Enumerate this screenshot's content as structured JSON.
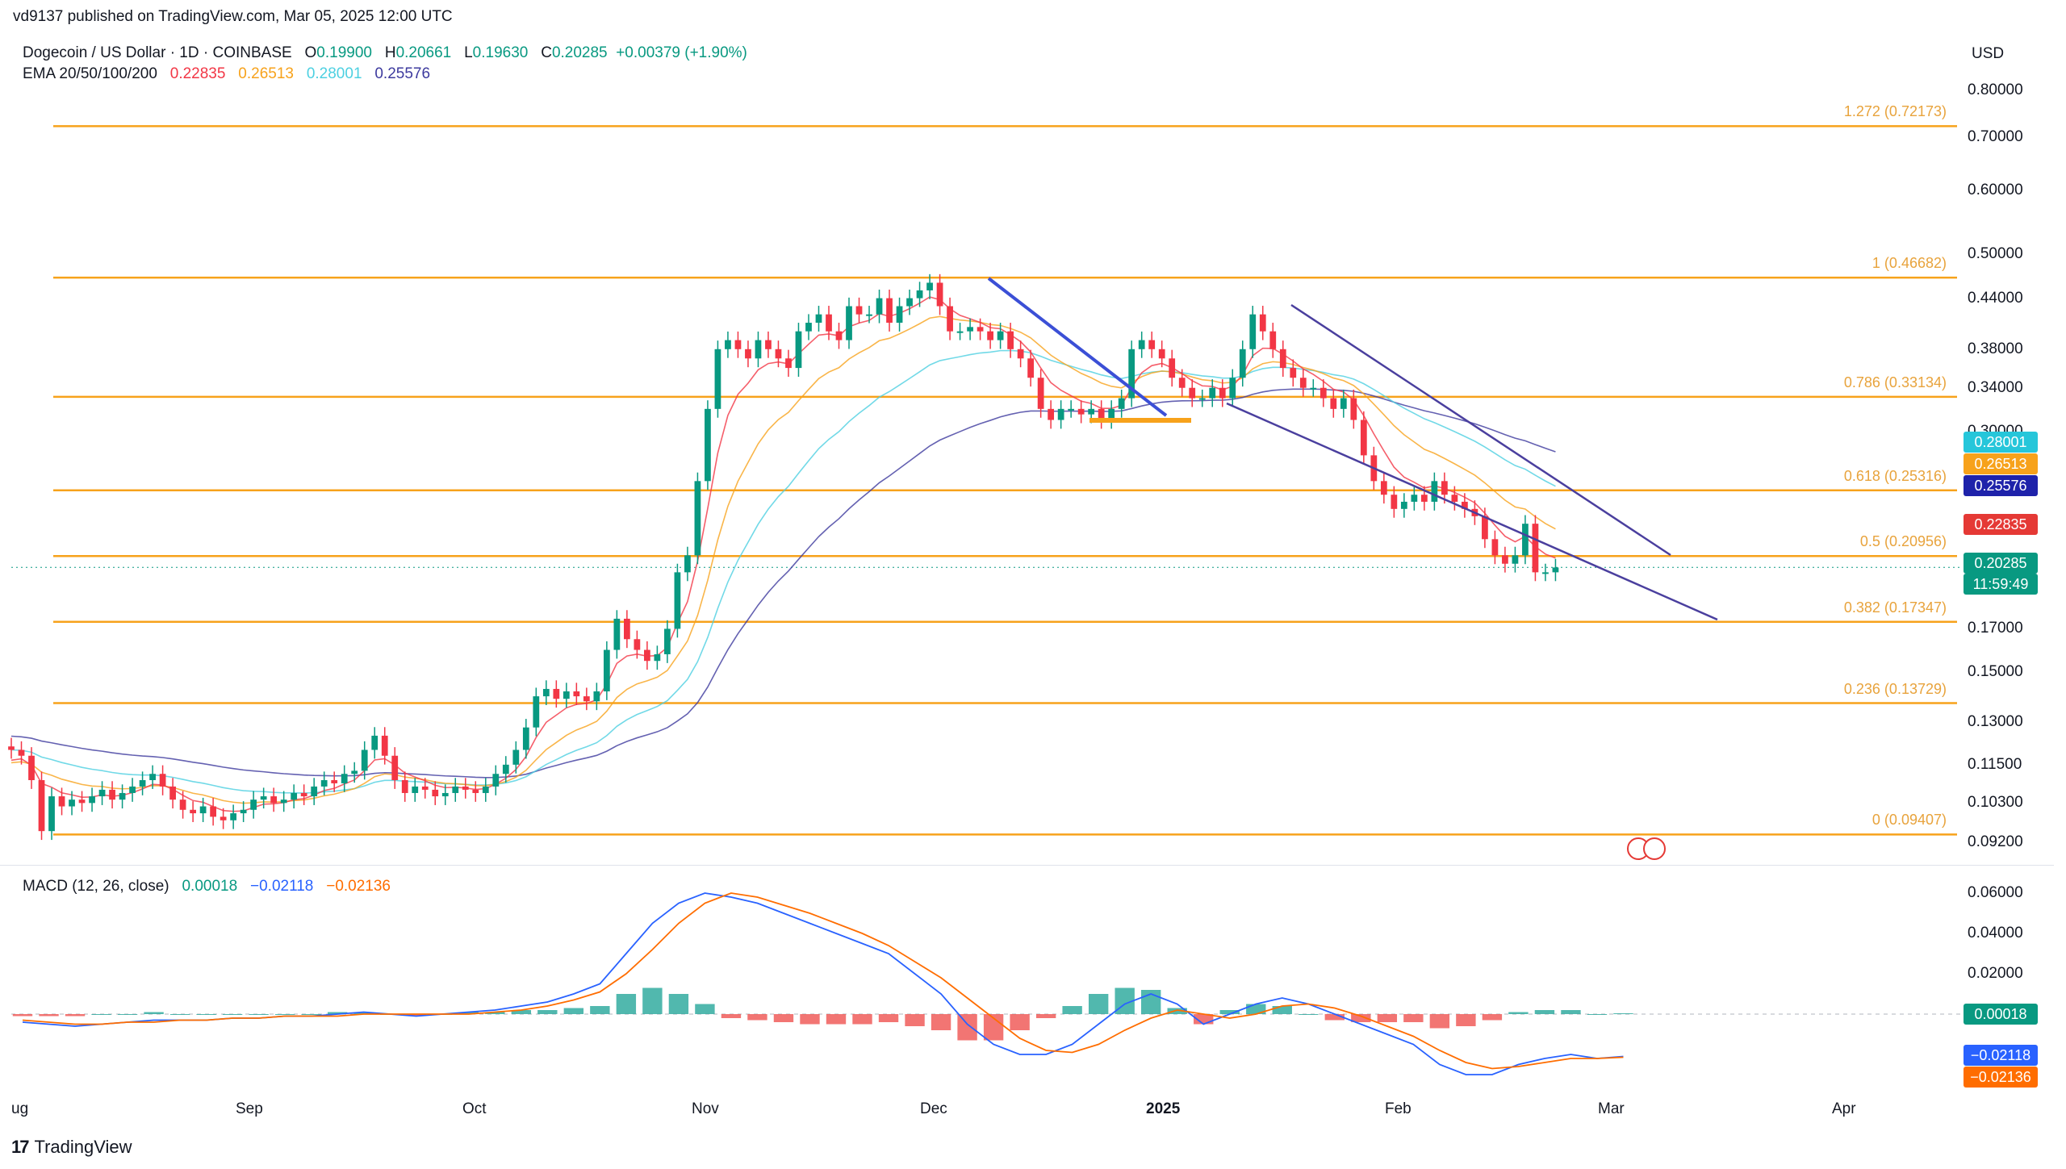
{
  "header": {
    "publisher": "vd9137 published on TradingView.com, Mar 05, 2025 12:00 UTC",
    "symbol": "Dogecoin / US Dollar · 1D · COINBASE",
    "o_label": "O",
    "o_value": "0.19900",
    "h_label": "H",
    "h_value": "0.20661",
    "l_label": "L",
    "l_value": "0.19630",
    "c_label": "C",
    "c_value": "0.20285",
    "change": "+0.00379 (+1.90%)",
    "ema_label": "EMA 20/50/100/200",
    "ema20": "0.22835",
    "ema50": "0.26513",
    "ema100": "0.28001",
    "ema200": "0.25576",
    "currency": "USD"
  },
  "macd_header": {
    "label": "MACD (12, 26, close)",
    "hist": "0.00018",
    "macd": "−0.02118",
    "signal": "−0.02136"
  },
  "colors": {
    "up": "#089981",
    "down": "#f23645",
    "fib": "#f7a21b",
    "ema20": "#f23645",
    "ema50": "#f7a21b",
    "ema100": "#4dd0e1",
    "ema200": "#3d3a9e",
    "macd": "#2962ff",
    "signal": "#ff6d00"
  },
  "brand": {
    "name": "TradingView",
    "logo_icon": "tradingview-logo-icon"
  },
  "chart_data": [
    {
      "type": "candlestick",
      "title": "Dogecoin / US Dollar · 1D · COINBASE",
      "scale": "log",
      "yticks": [
        "0.80000",
        "0.70000",
        "0.60000",
        "0.50000",
        "0.44000",
        "0.38000",
        "0.34000",
        "0.30000",
        "0.17000",
        "0.15000",
        "0.13000",
        "0.11500",
        "0.10300",
        "0.09200"
      ],
      "xticks": [
        "ug",
        "Sep",
        "Oct",
        "Nov",
        "Dec",
        "2025",
        "Feb",
        "Mar",
        "Apr"
      ],
      "fib_levels": [
        {
          "label": "1.272 (0.72173)",
          "value": 0.72173
        },
        {
          "label": "1 (0.46682)",
          "value": 0.46682
        },
        {
          "label": "0.786 (0.33134)",
          "value": 0.33134
        },
        {
          "label": "0.618 (0.25316)",
          "value": 0.25316
        },
        {
          "label": "0.5 (0.20956)",
          "value": 0.20956
        },
        {
          "label": "0.382 (0.17347)",
          "value": 0.17347
        },
        {
          "label": "0.236 (0.13729)",
          "value": 0.13729
        },
        {
          "label": "0 (0.09407)",
          "value": 0.09407
        }
      ],
      "price_tags": [
        {
          "label": "0.28001",
          "value": 0.28001,
          "color": "#26c6da"
        },
        {
          "label": "0.26513",
          "value": 0.26513,
          "color": "#f7a21b"
        },
        {
          "label": "0.25576",
          "value": 0.25576,
          "color": "#1e22aa"
        },
        {
          "label": "0.22835",
          "value": 0.22835,
          "color": "#e53935"
        },
        {
          "label": "0.20285",
          "value": 0.20285,
          "color": "#089981"
        }
      ],
      "countdown": "11:59:49",
      "closes_approx": [
        0.12,
        0.118,
        0.11,
        0.095,
        0.105,
        0.102,
        0.104,
        0.103,
        0.105,
        0.107,
        0.104,
        0.106,
        0.108,
        0.11,
        0.112,
        0.108,
        0.104,
        0.101,
        0.1,
        0.102,
        0.099,
        0.098,
        0.1,
        0.101,
        0.104,
        0.105,
        0.103,
        0.104,
        0.106,
        0.105,
        0.108,
        0.11,
        0.109,
        0.112,
        0.113,
        0.12,
        0.125,
        0.118,
        0.11,
        0.106,
        0.108,
        0.107,
        0.105,
        0.106,
        0.108,
        0.107,
        0.106,
        0.108,
        0.112,
        0.115,
        0.12,
        0.128,
        0.14,
        0.143,
        0.139,
        0.142,
        0.14,
        0.138,
        0.142,
        0.16,
        0.175,
        0.165,
        0.16,
        0.155,
        0.158,
        0.17,
        0.2,
        0.21,
        0.26,
        0.32,
        0.38,
        0.39,
        0.38,
        0.37,
        0.39,
        0.38,
        0.37,
        0.36,
        0.4,
        0.41,
        0.42,
        0.4,
        0.39,
        0.43,
        0.42,
        0.42,
        0.44,
        0.41,
        0.43,
        0.44,
        0.45,
        0.46,
        0.43,
        0.4,
        0.4,
        0.405,
        0.4,
        0.39,
        0.4,
        0.38,
        0.37,
        0.35,
        0.32,
        0.31,
        0.32,
        0.32,
        0.315,
        0.32,
        0.31,
        0.32,
        0.33,
        0.38,
        0.39,
        0.38,
        0.37,
        0.35,
        0.34,
        0.33,
        0.33,
        0.34,
        0.33,
        0.35,
        0.38,
        0.42,
        0.4,
        0.38,
        0.36,
        0.35,
        0.34,
        0.34,
        0.33,
        0.32,
        0.33,
        0.31,
        0.28,
        0.26,
        0.25,
        0.24,
        0.245,
        0.25,
        0.245,
        0.26,
        0.25,
        0.245,
        0.24,
        0.235,
        0.22,
        0.21,
        0.205,
        0.21,
        0.23,
        0.2,
        0.2,
        0.2028
      ],
      "ema_last": {
        "ema20": 0.22835,
        "ema50": 0.26513,
        "ema100": 0.28001,
        "ema200": 0.25576
      }
    },
    {
      "type": "macd",
      "title": "MACD (12, 26, close)",
      "yticks": [
        "0.06000",
        "0.04000",
        "0.02000"
      ],
      "tags": [
        {
          "label": "0.00018",
          "value": 0.00018,
          "color": "#089981"
        },
        {
          "label": "−0.02118",
          "value": -0.02118,
          "color": "#2962ff"
        },
        {
          "label": "−0.02136",
          "value": -0.02136,
          "color": "#ff6d00"
        }
      ],
      "macd_approx": [
        -0.004,
        -0.005,
        -0.006,
        -0.005,
        -0.004,
        -0.003,
        -0.003,
        -0.003,
        -0.002,
        -0.002,
        -0.001,
        -0.001,
        0.0,
        0.001,
        0.0,
        -0.001,
        0.0,
        0.001,
        0.002,
        0.004,
        0.006,
        0.01,
        0.015,
        0.03,
        0.045,
        0.055,
        0.06,
        0.058,
        0.055,
        0.05,
        0.045,
        0.04,
        0.035,
        0.03,
        0.02,
        0.01,
        -0.005,
        -0.015,
        -0.02,
        -0.02,
        -0.015,
        -0.005,
        0.005,
        0.01,
        0.005,
        -0.005,
        0.0,
        0.005,
        0.008,
        0.005,
        0.0,
        -0.005,
        -0.01,
        -0.015,
        -0.025,
        -0.03,
        -0.03,
        -0.025,
        -0.022,
        -0.02,
        -0.022,
        -0.021
      ],
      "signal_approx": [
        -0.003,
        -0.004,
        -0.005,
        -0.005,
        -0.004,
        -0.004,
        -0.003,
        -0.003,
        -0.002,
        -0.002,
        -0.001,
        -0.001,
        -0.001,
        0.0,
        0.0,
        0.0,
        0.0,
        0.0,
        0.001,
        0.002,
        0.004,
        0.007,
        0.011,
        0.02,
        0.032,
        0.045,
        0.055,
        0.06,
        0.058,
        0.054,
        0.05,
        0.045,
        0.04,
        0.034,
        0.026,
        0.018,
        0.008,
        -0.002,
        -0.012,
        -0.018,
        -0.019,
        -0.015,
        -0.008,
        -0.002,
        0.002,
        0.0,
        -0.002,
        0.0,
        0.004,
        0.005,
        0.003,
        -0.001,
        -0.006,
        -0.011,
        -0.018,
        -0.024,
        -0.027,
        -0.026,
        -0.024,
        -0.022,
        -0.022,
        -0.0214
      ]
    }
  ]
}
